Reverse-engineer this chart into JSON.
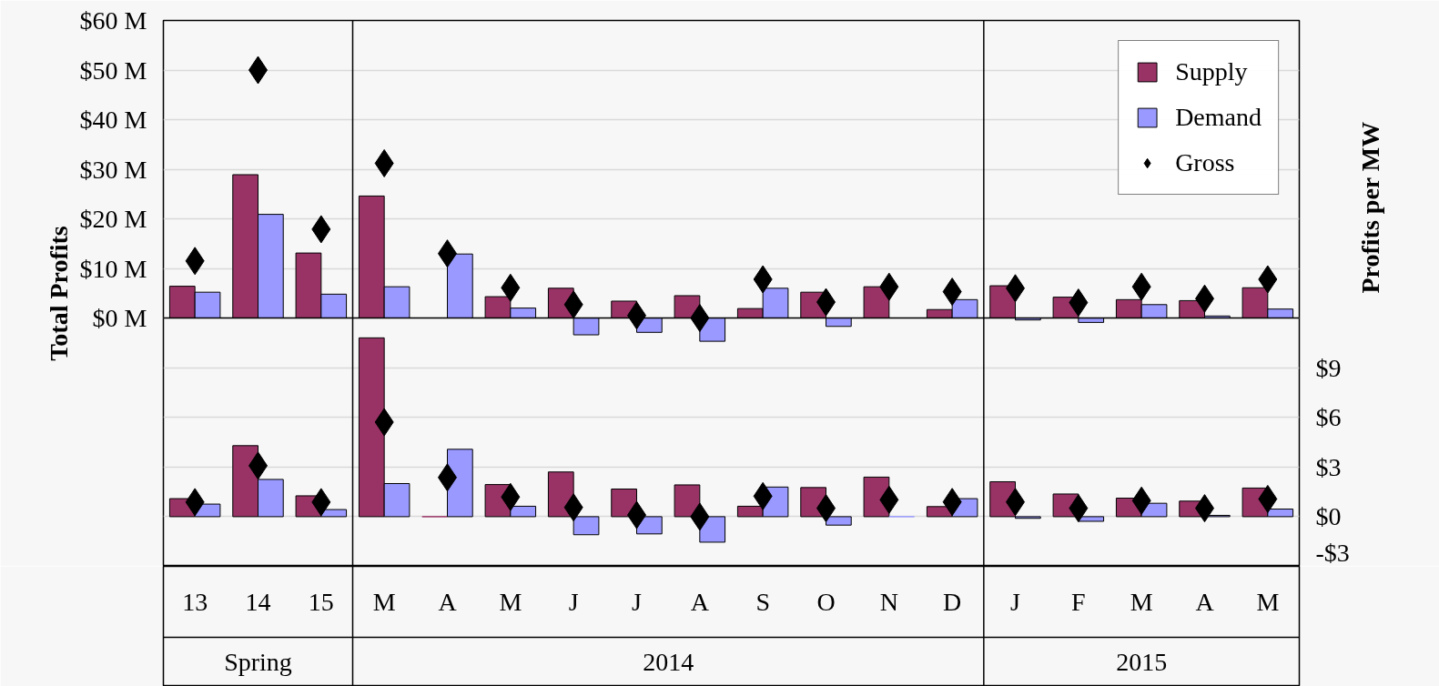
{
  "chart_data": [
    {
      "type": "bar",
      "categories": [
        null,
        null,
        null,
        null,
        null,
        null,
        null,
        null,
        null,
        null,
        null,
        null,
        null,
        null,
        null,
        null,
        null,
        null
      ],
      "tick_labels": "y",
      "ylabel": "Total Profits",
      "ylim": [
        -5,
        60
      ],
      "yticks": [
        {
          "value": 0,
          "label": "$0 M"
        },
        {
          "value": 10,
          "label": "$10 M"
        },
        {
          "value": 20,
          "label": "$20 M"
        },
        {
          "value": 30,
          "label": "$30 M"
        },
        {
          "value": 40,
          "label": "$40 M"
        },
        {
          "value": 50,
          "label": "$50 M"
        },
        {
          "value": 60,
          "label": "$60 M"
        }
      ],
      "grid": "y",
      "legend": "top right",
      "series": [
        {
          "name": "Supply",
          "color": "#993366",
          "values": [
            6.4,
            28.9,
            13.1,
            24.6,
            0,
            4.3,
            6.0,
            3.4,
            4.5,
            1.9,
            5.2,
            6.3,
            1.7,
            6.5,
            4.2,
            3.7,
            3.5,
            6.1
          ]
        },
        {
          "name": "Demand",
          "color": "#9999ff",
          "values": [
            5.2,
            20.9,
            4.8,
            6.3,
            12.9,
            2.0,
            -3.4,
            -2.9,
            -4.7,
            6.0,
            -1.7,
            0,
            3.7,
            -0.4,
            -0.9,
            2.7,
            0.4,
            1.8
          ]
        },
        {
          "name": "Gross",
          "type": "scatter",
          "marker": "diamond",
          "color": "#000000",
          "values": [
            11.5,
            50,
            17.9,
            31.2,
            13.0,
            6.1,
            2.7,
            0.5,
            0,
            7.8,
            3.2,
            6.3,
            5.3,
            6.0,
            3.1,
            6.3,
            3.9,
            7.8
          ]
        }
      ]
    },
    {
      "type": "bar",
      "categories": [
        "13",
        "14",
        "15",
        "M",
        "A",
        "M",
        "J",
        "J",
        "A",
        "S",
        "O",
        "N",
        "D",
        "J",
        "F",
        "M",
        "A",
        "M"
      ],
      "y2label": "Profits per MW",
      "y2lim": [
        -3,
        12
      ],
      "y2ticks": [
        {
          "value": -3,
          "label": "-$3"
        },
        {
          "value": 0,
          "label": "$0"
        },
        {
          "value": 3,
          "label": "$3"
        },
        {
          "value": 6,
          "label": "$6"
        },
        {
          "value": 9,
          "label": "$9"
        }
      ],
      "grid": "y",
      "annotations": [
        "Spring",
        "2014",
        "2015"
      ],
      "series": [
        {
          "axis": "y2",
          "color": "#993366",
          "values": [
            1.09,
            4.29,
            1.26,
            10.8,
            0,
            1.94,
            2.7,
            1.67,
            1.92,
            0.63,
            1.76,
            2.39,
            0.61,
            2.11,
            1.37,
            1.12,
            0.94,
            1.73
          ]
        },
        {
          "axis": "y2",
          "color": "#9999ff",
          "values": [
            0.76,
            2.25,
            0.43,
            2.0,
            4.07,
            0.63,
            -1.09,
            -1.04,
            -1.54,
            1.79,
            -0.51,
            0,
            1.09,
            -0.1,
            -0.28,
            0.81,
            0.08,
            0.46
          ]
        },
        {
          "type": "scatter",
          "axis": "y2",
          "marker": "diamond",
          "color": "#000000",
          "values": [
            0.88,
            3.08,
            0.88,
            5.71,
            2.37,
            1.19,
            0.56,
            0.1,
            0,
            1.24,
            0.51,
            1.02,
            0.89,
            0.89,
            0.51,
            0.97,
            0.51,
            1.07
          ]
        }
      ]
    }
  ]
}
